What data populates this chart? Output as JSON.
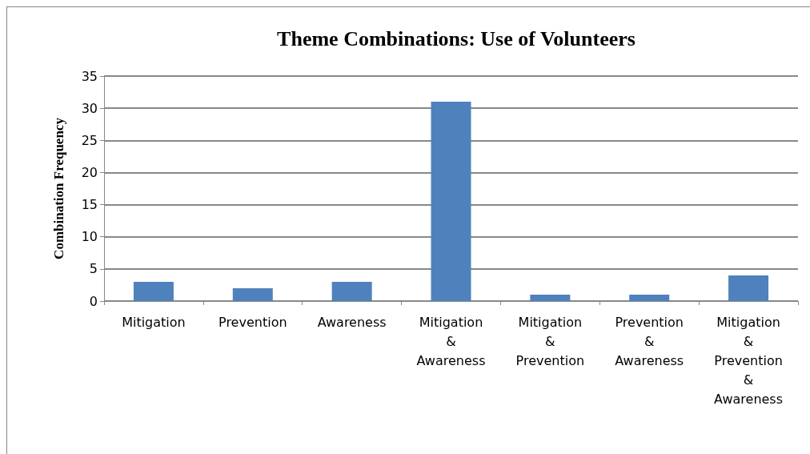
{
  "chart_data": {
    "type": "bar",
    "title": "Theme Combinations: Use of Volunteers",
    "ylabel": "Combination Frequency",
    "categories": [
      "Mitigation",
      "Prevention",
      "Awareness",
      "Mitigation & Awareness",
      "Mitigation & Prevention",
      "Prevention & Awareness",
      "Mitigation & Prevention & Awareness"
    ],
    "values": [
      3,
      2,
      3,
      31,
      1,
      1,
      4
    ],
    "color": "#4f81bd",
    "ylim": [
      0,
      35
    ],
    "yticks": [
      0,
      5,
      10,
      15,
      20,
      25,
      30,
      35
    ],
    "grid": "y"
  }
}
